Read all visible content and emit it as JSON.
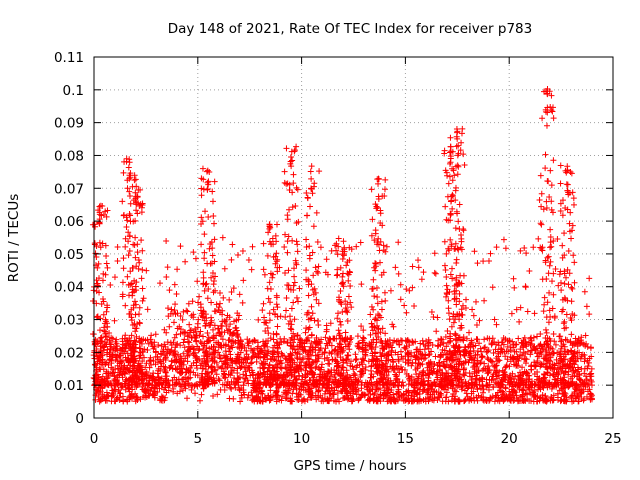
{
  "chart_data": {
    "type": "scatter",
    "title": "Day 148 of 2021, Rate Of TEC Index for receiver p783",
    "xlabel": "GPS time / hours",
    "ylabel": "ROTI / TECUs",
    "xlim": [
      0,
      25
    ],
    "ylim": [
      0,
      0.11
    ],
    "x_ticks": [
      "0",
      "5",
      "10",
      "15",
      "20",
      "25"
    ],
    "y_ticks": [
      "0",
      "0.01",
      "0.02",
      "0.03",
      "0.04",
      "0.05",
      "0.06",
      "0.07",
      "0.08",
      "0.09",
      "0.1",
      "0.11"
    ],
    "grid": true,
    "marker": "+",
    "series_color": "#ff0000",
    "x_range_of_data": [
      0,
      24
    ],
    "baseline_band": [
      0.005,
      0.02
    ],
    "peaks": [
      {
        "x": 0.3,
        "y": 0.065
      },
      {
        "x": 1.7,
        "y": 0.08
      },
      {
        "x": 2.0,
        "y": 0.073
      },
      {
        "x": 5.5,
        "y": 0.077
      },
      {
        "x": 8.5,
        "y": 0.06
      },
      {
        "x": 9.5,
        "y": 0.084
      },
      {
        "x": 10.5,
        "y": 0.077
      },
      {
        "x": 12.0,
        "y": 0.055
      },
      {
        "x": 13.7,
        "y": 0.074
      },
      {
        "x": 17.2,
        "y": 0.084
      },
      {
        "x": 17.5,
        "y": 0.091
      },
      {
        "x": 21.8,
        "y": 0.101
      },
      {
        "x": 22.8,
        "y": 0.077
      }
    ]
  }
}
